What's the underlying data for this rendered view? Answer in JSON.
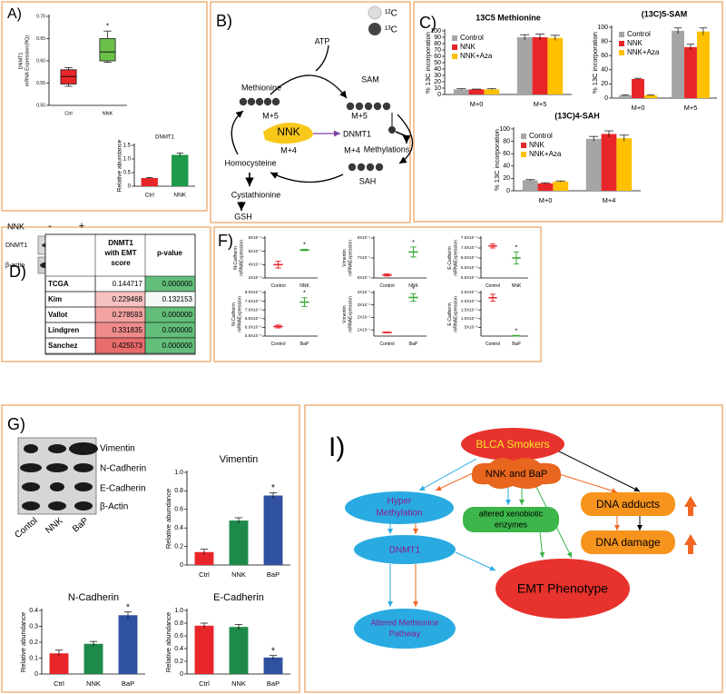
{
  "panel_labels": [
    "A)",
    "B)",
    "C)",
    "D)",
    "F)",
    "G)",
    "I)"
  ],
  "chart_data": [
    {
      "type": "box",
      "ylabel": [
        "DNMT1",
        "mRNA Expression(RQ)"
      ],
      "categories": [
        "Ctrl",
        "NNK"
      ],
      "colors": [
        "#e8262a",
        "#6cc04a"
      ],
      "boxes": [
        {
          "min": 0.543,
          "q1": 0.548,
          "median": 0.565,
          "q3": 0.58,
          "max": 0.585
        },
        {
          "min": 0.597,
          "q1": 0.6,
          "median": 0.62,
          "q3": 0.65,
          "max": 0.667
        }
      ],
      "ylim": [
        0.5,
        0.7
      ],
      "yticks": [
        {
          "value": 0.5,
          "label": "0.50"
        },
        {
          "value": 0.55,
          "label": "0.55"
        },
        {
          "value": 0.6,
          "label": "0.60"
        },
        {
          "value": 0.65,
          "label": "0.65"
        },
        {
          "value": 0.7,
          "label": "0.70"
        }
      ],
      "annotation": "*"
    },
    {
      "type": "bar",
      "title": "DNMT1",
      "ylabel": "Relative abundance",
      "categories": [
        "Ctrl",
        "NNK"
      ],
      "values": [
        0.3,
        1.15
      ],
      "errors": [
        0.02,
        0.07
      ],
      "colors": [
        "#e8262a",
        "#1e9a4a"
      ],
      "ylim": [
        0,
        1.5
      ],
      "yticks": [
        0,
        0.5,
        {
          "value": 1,
          "label": "1.0"
        },
        1.5
      ]
    },
    {
      "type": "bar",
      "title": "13C5 Methionine",
      "ylabel": "% 13C incorporation",
      "categories": [
        "M+0",
        "M+5"
      ],
      "legend": "upper left",
      "series": [
        {
          "name": "Control",
          "color": "#a5a5a5",
          "values": [
            8,
            90
          ],
          "errors": [
            1,
            4
          ]
        },
        {
          "name": "NNK",
          "color": "#e8262a",
          "values": [
            8,
            90
          ],
          "errors": [
            0.5,
            5
          ]
        },
        {
          "name": "NNK+Aza",
          "color": "#ffc000",
          "values": [
            8,
            89
          ],
          "errors": [
            1,
            4
          ]
        }
      ],
      "ylim": [
        0,
        100
      ],
      "yticks": [
        0,
        10,
        20,
        30,
        40,
        50,
        60,
        70,
        80,
        90,
        100
      ]
    },
    {
      "type": "bar",
      "title": "(13C)5-SAM",
      "ylabel": "% 13C incorporation",
      "categories": [
        "M+0",
        "M+5"
      ],
      "legend": "upper left",
      "series": [
        {
          "name": "Control",
          "color": "#a5a5a5",
          "values": [
            4,
            95
          ],
          "errors": [
            0.5,
            4
          ]
        },
        {
          "name": "NNK",
          "color": "#e8262a",
          "values": [
            27,
            72
          ],
          "errors": [
            1,
            4
          ]
        },
        {
          "name": "NNK+Aza",
          "color": "#ffc000",
          "values": [
            4,
            94
          ],
          "errors": [
            0.5,
            5
          ]
        }
      ],
      "ylim": [
        0,
        100
      ],
      "yticks": [
        0,
        20,
        40,
        60,
        80,
        100
      ]
    },
    {
      "type": "bar",
      "title": "(13C)4-SAH",
      "ylabel": "% 13C incorporation",
      "categories": [
        "M+0",
        "M+4"
      ],
      "legend": "upper left",
      "series": [
        {
          "name": "Control",
          "color": "#a5a5a5",
          "values": [
            17,
            84
          ],
          "errors": [
            1,
            4
          ]
        },
        {
          "name": "NNK",
          "color": "#e8262a",
          "values": [
            12,
            92
          ],
          "errors": [
            1,
            5
          ]
        },
        {
          "name": "NNK+Aza",
          "color": "#ffc000",
          "values": [
            15,
            85
          ],
          "errors": [
            1,
            5
          ]
        }
      ],
      "ylim": [
        0,
        100
      ],
      "yticks": [
        0,
        20,
        40,
        60,
        80,
        100
      ]
    },
    {
      "type": "errorplot",
      "ylabel": [
        "N-Cadherin",
        "mRNAExpression"
      ],
      "categories": [
        "Control",
        "NNK"
      ],
      "values": [
        0.4,
        0.62
      ],
      "errors": [
        0.05,
        0.01
      ],
      "colors": [
        "#e8262a",
        "#3aaa35"
      ],
      "ylim": [
        0.2,
        0.8
      ],
      "yticks": [
        {
          "value": 0.2,
          "label": "2X10⁻¹"
        },
        {
          "value": 0.4,
          "label": "4X10⁻¹"
        },
        {
          "value": 0.6,
          "label": "6X10⁻¹"
        },
        {
          "value": 0.8,
          "label": "8X10⁻¹"
        }
      ],
      "annotation": "*"
    },
    {
      "type": "errorplot",
      "ylabel": [
        "Vimentin",
        "mRNAExpression"
      ],
      "categories": [
        "Control",
        "NNK"
      ],
      "values": [
        0.53,
        0.76
      ],
      "errors": [
        0.01,
        0.05
      ],
      "colors": [
        "#e8262a",
        "#3aaa35"
      ],
      "ylim": [
        0.5,
        0.9
      ],
      "yticks": [
        {
          "value": 0.5,
          "label": "5X10⁻¹"
        },
        {
          "value": 0.7,
          "label": "7X10⁻¹"
        },
        {
          "value": 0.9,
          "label": "9X10⁻¹"
        }
      ],
      "annotation": "*"
    },
    {
      "type": "errorplot",
      "ylabel": [
        "E-Cadherin",
        "mRNAExpression"
      ],
      "categories": [
        "Control",
        "NNK"
      ],
      "values": [
        0.71,
        0.65
      ],
      "errors": [
        0.01,
        0.03
      ],
      "colors": [
        "#e8262a",
        "#3aaa35"
      ],
      "ylim": [
        0.55,
        0.75
      ],
      "yticks": [
        {
          "value": 0.55,
          "label": "5.5X10⁻¹"
        },
        {
          "value": 0.6,
          "label": "6.0X10⁻¹"
        },
        {
          "value": 0.65,
          "label": "6.5X10⁻¹"
        },
        {
          "value": 0.7,
          "label": "7.0X10⁻¹"
        },
        {
          "value": 0.75,
          "label": "7.5X10⁻¹"
        }
      ],
      "annotation": "*"
    },
    {
      "type": "errorplot",
      "ylabel": [
        "N-Cadherin",
        "mRNAExpression"
      ],
      "categories": [
        "Control",
        "BaP"
      ],
      "values": [
        0.605,
        0.745
      ],
      "errors": [
        0.008,
        0.025
      ],
      "colors": [
        "#e8262a",
        "#3aaa35"
      ],
      "ylim": [
        0.55,
        0.8
      ],
      "yticks": [
        {
          "value": 0.55,
          "label": "5.5X10⁻¹"
        },
        {
          "value": 0.6,
          "label": "6.0X10⁻¹"
        },
        {
          "value": 0.65,
          "label": "6.5X10⁻¹"
        },
        {
          "value": 0.7,
          "label": "7.0X10⁻¹"
        },
        {
          "value": 0.75,
          "label": "7.5X10⁻¹"
        },
        {
          "value": 0.8,
          "label": "8.0X10⁻¹"
        }
      ],
      "annotation": "*"
    },
    {
      "type": "errorplot",
      "ylabel": [
        "Vimentin",
        "mRNAExpression"
      ],
      "categories": [
        "Control",
        "BaP"
      ],
      "values": [
        0.08,
        0.36
      ],
      "errors": [
        0.003,
        0.03
      ],
      "colors": [
        "#e8262a",
        "#3aaa35"
      ],
      "ylim": [
        0.05,
        0.4
      ],
      "yticks": [
        {
          "value": 0.1,
          "label": "1X10⁻¹"
        },
        {
          "value": 0.2,
          "label": "2X10⁻¹"
        },
        {
          "value": 0.3,
          "label": "3X10⁻¹"
        },
        {
          "value": 0.4,
          "label": "4X10⁻¹"
        }
      ],
      "annotation": "*"
    },
    {
      "type": "errorplot",
      "ylabel": [
        "E-Cadherin",
        "mRNAExpression"
      ],
      "categories": [
        "Control",
        "BaP"
      ],
      "values": [
        0.22,
        0.002
      ],
      "errors": [
        0.02,
        0.001
      ],
      "colors": [
        "#e8262a",
        "#3aaa35"
      ],
      "ylim": [
        0,
        0.25
      ],
      "yticks": [
        {
          "value": 0.05,
          "label": "5X10⁻²"
        },
        {
          "value": 0.1,
          "label": "1.0X10⁻¹"
        },
        {
          "value": 0.15,
          "label": "1.5X10⁻¹"
        },
        {
          "value": 0.2,
          "label": "2.0X10⁻¹"
        },
        {
          "value": 0.25,
          "label": "2.5X10⁻¹"
        }
      ],
      "annotation": "*"
    },
    {
      "type": "bar",
      "title": "Vimentin",
      "ylabel": "Relative abundance",
      "categories": [
        "Ctrl",
        "NNK",
        "BaP"
      ],
      "values": [
        0.14,
        0.48,
        0.75
      ],
      "errors": [
        0.03,
        0.03,
        0.03
      ],
      "colors": [
        "#e8262a",
        "#1e8a4a",
        "#3050a0"
      ],
      "ylim": [
        0,
        1
      ],
      "yticks": [
        0,
        0.2,
        0.4,
        0.6,
        0.8,
        {
          "value": 1,
          "label": "1.0"
        }
      ],
      "annotation": "*"
    },
    {
      "type": "bar",
      "title": "N-Cadherin",
      "ylabel": "Relative abundance",
      "categories": [
        "Ctrl",
        "NNK",
        "BaP"
      ],
      "values": [
        0.13,
        0.19,
        0.37
      ],
      "errors": [
        0.02,
        0.015,
        0.02
      ],
      "colors": [
        "#e8262a",
        "#1e8a4a",
        "#3050a0"
      ],
      "ylim": [
        0,
        0.4
      ],
      "yticks": [
        0,
        0.1,
        0.2,
        0.3,
        0.4
      ],
      "annotation": "*"
    },
    {
      "type": "bar",
      "title": "E-Cadherin",
      "ylabel": "Relative abundance",
      "categories": [
        "Ctrl",
        "NNK",
        "BaP"
      ],
      "values": [
        0.76,
        0.74,
        0.26
      ],
      "errors": [
        0.04,
        0.04,
        0.03
      ],
      "colors": [
        "#e8262a",
        "#1e8a4a",
        "#3050a0"
      ],
      "ylim": [
        0,
        1
      ],
      "yticks": [
        0,
        0.2,
        0.4,
        0.6,
        0.8,
        {
          "value": 1,
          "label": "1.0"
        }
      ],
      "annotation": "*"
    }
  ],
  "blot_a": {
    "treatment": "NNK",
    "lanes": [
      "-",
      "+"
    ],
    "rows": [
      "DNMT1",
      "β-actin"
    ]
  },
  "diagram_b": {
    "isotopes": [
      "¹²C",
      "¹³C"
    ],
    "texts": [
      "ATP",
      "Methionine",
      "SAM",
      "M+5",
      "M+5",
      "NNK",
      "DNMT1",
      "Methylations",
      "Homocysteine",
      "M+4",
      "M+4",
      "SAH",
      "Cystathionine",
      "GSH"
    ]
  },
  "table_d": {
    "header": [
      [
        "DNMT1",
        "with EMT",
        "score"
      ],
      "p-value"
    ],
    "rows": [
      [
        "TCGA",
        "0.144717",
        "0.000000"
      ],
      [
        "Kim",
        "0.229468",
        "0.132153"
      ],
      [
        "Vallot",
        "0.278593",
        "0.000000"
      ],
      [
        "Lindgren",
        "0.331835",
        "0.000000"
      ],
      [
        "Sanchez",
        "0.425573",
        "0.000000"
      ]
    ]
  },
  "blot_g": {
    "rows": [
      "Vimentin",
      "N-Cadherin",
      "E-Cadherin",
      "β-Actin"
    ],
    "lanes": [
      "Contol",
      "NNK",
      "BaP"
    ]
  },
  "diagram_i": {
    "nodes": [
      [
        "BLCA Smokers"
      ],
      [
        "NNK and BaP"
      ],
      [
        "Hyper",
        "Methylation"
      ],
      [
        "altered xenobiotic",
        "enzymes"
      ],
      [
        "DNA adducts"
      ],
      [
        "DNA damage"
      ],
      [
        "DNMT1"
      ],
      [
        "EMT Phenotype"
      ],
      [
        "Altered Methionine",
        "Pathway"
      ]
    ]
  }
}
